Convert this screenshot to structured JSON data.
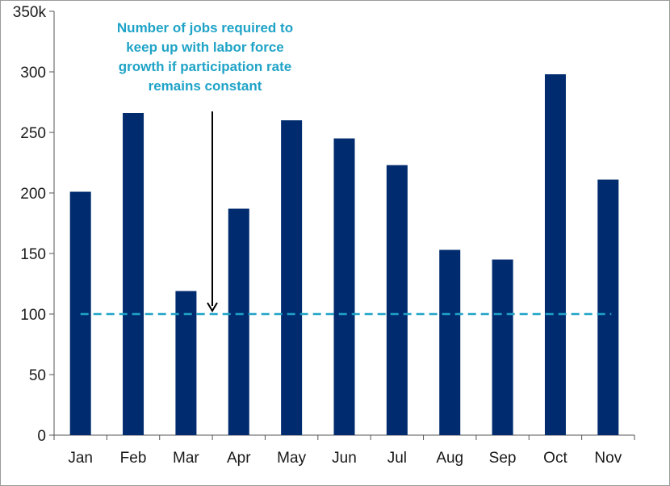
{
  "chart_data": {
    "type": "bar",
    "categories": [
      "Jan",
      "Feb",
      "Mar",
      "Apr",
      "May",
      "Jun",
      "Jul",
      "Aug",
      "Sep",
      "Oct",
      "Nov"
    ],
    "series": [
      {
        "values": [
          201,
          266,
          119,
          187,
          260,
          245,
          223,
          153,
          145,
          298,
          211
        ]
      }
    ],
    "y_ticks": [
      "0",
      "50",
      "100",
      "150",
      "200",
      "250",
      "300",
      "350k"
    ],
    "y_tick_values": [
      0,
      50,
      100,
      150,
      200,
      250,
      300,
      350
    ],
    "ylim": [
      0,
      350
    ],
    "grid": false,
    "reference_line": {
      "value": 100,
      "style": "dashed"
    },
    "annotation": {
      "lines": [
        "Number of jobs required to",
        "keep up with labor force",
        "growth if participation rate",
        "remains constant"
      ],
      "arrow_points_to_value": 100
    },
    "colors": {
      "bar": "#002b6e",
      "reference_line": "#1fa3c7",
      "annotation_text": "#1fa3c7",
      "axis": "#555555",
      "arrow": "#000000"
    }
  }
}
